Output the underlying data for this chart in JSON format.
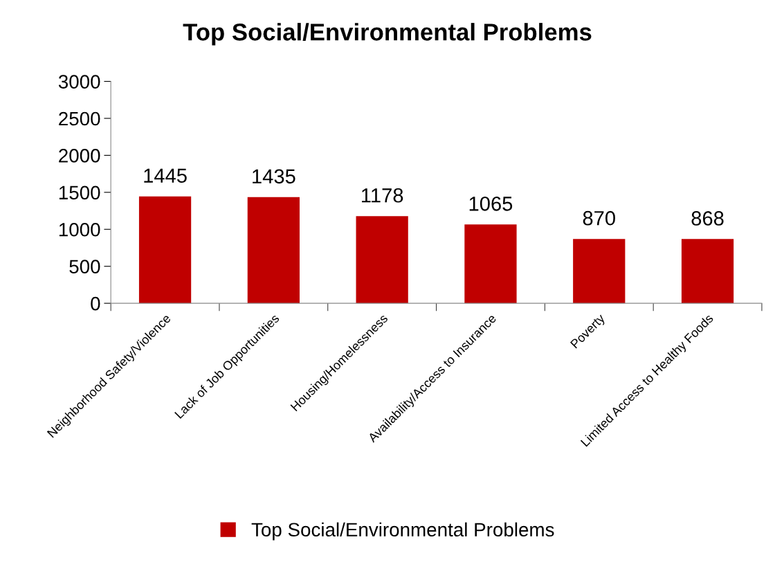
{
  "chart_data": {
    "type": "bar",
    "title": "Top Social/Environmental Problems",
    "categories": [
      "Neighborhood Safety/Violence",
      "Lack of Job Opportunities",
      "Housing/Homelessness",
      "Availability/Access to Insurance",
      "Poverty",
      "Limited Access to Healthy Foods"
    ],
    "series": [
      {
        "name": "Top Social/Environmental Problems",
        "color": "#c00000",
        "values": [
          1445,
          1435,
          1178,
          1065,
          870,
          868
        ]
      }
    ],
    "ylim": [
      0,
      3000
    ],
    "yticks": [
      0,
      500,
      1000,
      1500,
      2000,
      2500,
      3000
    ],
    "data_labels": true,
    "legend": "bottom",
    "grid": false
  }
}
